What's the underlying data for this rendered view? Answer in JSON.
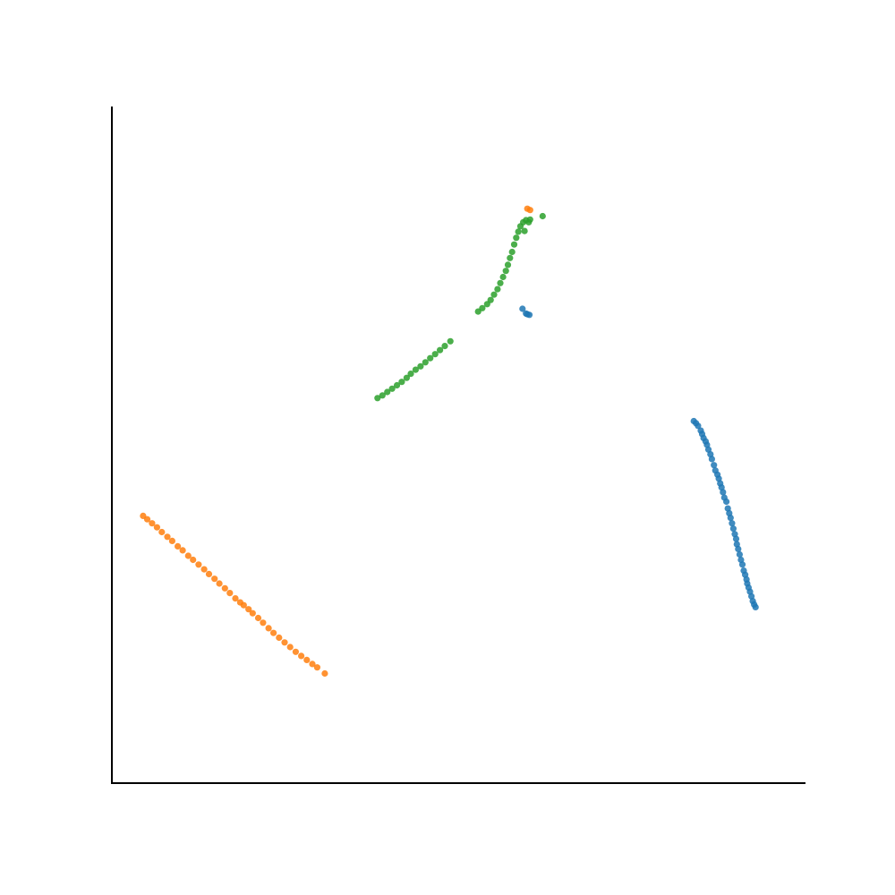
{
  "chart_data": {
    "type": "scatter",
    "title": "",
    "xlabel": "",
    "ylabel": "",
    "xlim": [
      0,
      100
    ],
    "ylim": [
      0,
      100
    ],
    "grid": false,
    "legend": "none",
    "ticks": "none",
    "series": [
      {
        "color": "#1f77b4",
        "points": [
          [
            83.9,
            53.5
          ],
          [
            84.2,
            53.2
          ],
          [
            84.5,
            52.8
          ],
          [
            84.9,
            52.1
          ],
          [
            85.1,
            51.6
          ],
          [
            85.3,
            51.0
          ],
          [
            85.6,
            50.5
          ],
          [
            85.8,
            50.0
          ],
          [
            86.0,
            49.3
          ],
          [
            86.3,
            48.6
          ],
          [
            86.5,
            47.9
          ],
          [
            86.8,
            47.0
          ],
          [
            87.0,
            46.2
          ],
          [
            87.3,
            45.6
          ],
          [
            87.5,
            45.0
          ],
          [
            87.7,
            44.3
          ],
          [
            87.9,
            43.7
          ],
          [
            88.1,
            43.0
          ],
          [
            88.3,
            42.2
          ],
          [
            88.6,
            41.6
          ],
          [
            88.8,
            40.6
          ],
          [
            89.0,
            39.9
          ],
          [
            89.2,
            39.2
          ],
          [
            89.4,
            38.4
          ],
          [
            89.6,
            37.6
          ],
          [
            89.8,
            36.8
          ],
          [
            90.0,
            36.1
          ],
          [
            90.1,
            35.3
          ],
          [
            90.3,
            34.6
          ],
          [
            90.5,
            33.8
          ],
          [
            90.7,
            33.0
          ],
          [
            90.9,
            32.3
          ],
          [
            91.1,
            31.4
          ],
          [
            91.3,
            30.8
          ],
          [
            91.5,
            30.1
          ],
          [
            91.6,
            29.5
          ],
          [
            91.8,
            28.9
          ],
          [
            92.0,
            28.3
          ],
          [
            92.2,
            27.6
          ],
          [
            92.4,
            26.9
          ],
          [
            92.6,
            26.4
          ],
          [
            92.8,
            26.0
          ],
          [
            59.2,
            70.1
          ],
          [
            59.7,
            69.4
          ],
          [
            59.9,
            69.3
          ],
          [
            60.2,
            69.2
          ]
        ]
      },
      {
        "color": "#ff7f0e",
        "points": [
          [
            4.5,
            39.5
          ],
          [
            5.1,
            39.0
          ],
          [
            5.8,
            38.4
          ],
          [
            6.5,
            37.8
          ],
          [
            7.2,
            37.1
          ],
          [
            8.0,
            36.4
          ],
          [
            8.7,
            35.8
          ],
          [
            9.5,
            35.0
          ],
          [
            10.2,
            34.4
          ],
          [
            11.0,
            33.6
          ],
          [
            11.7,
            33.0
          ],
          [
            12.5,
            32.3
          ],
          [
            13.3,
            31.6
          ],
          [
            14.0,
            30.9
          ],
          [
            14.8,
            30.2
          ],
          [
            15.5,
            29.5
          ],
          [
            16.3,
            28.8
          ],
          [
            17.0,
            28.1
          ],
          [
            17.8,
            27.3
          ],
          [
            18.5,
            26.7
          ],
          [
            19.0,
            26.3
          ],
          [
            19.7,
            25.7
          ],
          [
            20.3,
            25.1
          ],
          [
            21.1,
            24.4
          ],
          [
            21.8,
            23.7
          ],
          [
            22.6,
            22.9
          ],
          [
            23.3,
            22.2
          ],
          [
            24.1,
            21.5
          ],
          [
            24.9,
            20.8
          ],
          [
            25.7,
            20.1
          ],
          [
            26.5,
            19.4
          ],
          [
            27.3,
            18.8
          ],
          [
            28.1,
            18.2
          ],
          [
            28.9,
            17.6
          ],
          [
            29.6,
            17.1
          ],
          [
            30.7,
            16.2
          ],
          [
            59.9,
            84.9
          ],
          [
            60.3,
            84.7
          ]
        ]
      },
      {
        "color": "#2ca02c",
        "points": [
          [
            38.3,
            56.9
          ],
          [
            39.0,
            57.3
          ],
          [
            39.7,
            57.8
          ],
          [
            40.4,
            58.3
          ],
          [
            41.1,
            58.8
          ],
          [
            41.8,
            59.3
          ],
          [
            42.5,
            59.9
          ],
          [
            43.1,
            60.5
          ],
          [
            43.8,
            61.1
          ],
          [
            44.5,
            61.6
          ],
          [
            45.2,
            62.2
          ],
          [
            45.9,
            62.8
          ],
          [
            46.6,
            63.4
          ],
          [
            47.3,
            64.0
          ],
          [
            48.0,
            64.6
          ],
          [
            48.8,
            65.3
          ],
          [
            52.8,
            69.7
          ],
          [
            53.4,
            70.2
          ],
          [
            54.1,
            70.8
          ],
          [
            54.6,
            71.4
          ],
          [
            55.1,
            72.2
          ],
          [
            55.6,
            73.0
          ],
          [
            56.0,
            73.9
          ],
          [
            56.4,
            74.8
          ],
          [
            56.8,
            75.7
          ],
          [
            57.1,
            76.6
          ],
          [
            57.4,
            77.6
          ],
          [
            57.7,
            78.5
          ],
          [
            58.0,
            79.6
          ],
          [
            58.3,
            80.6
          ],
          [
            58.6,
            81.5
          ],
          [
            58.9,
            82.3
          ],
          [
            59.3,
            82.9
          ],
          [
            59.7,
            83.2
          ],
          [
            60.1,
            82.9
          ],
          [
            60.3,
            83.3
          ],
          [
            59.5,
            81.6
          ],
          [
            62.1,
            83.8
          ]
        ]
      }
    ]
  }
}
